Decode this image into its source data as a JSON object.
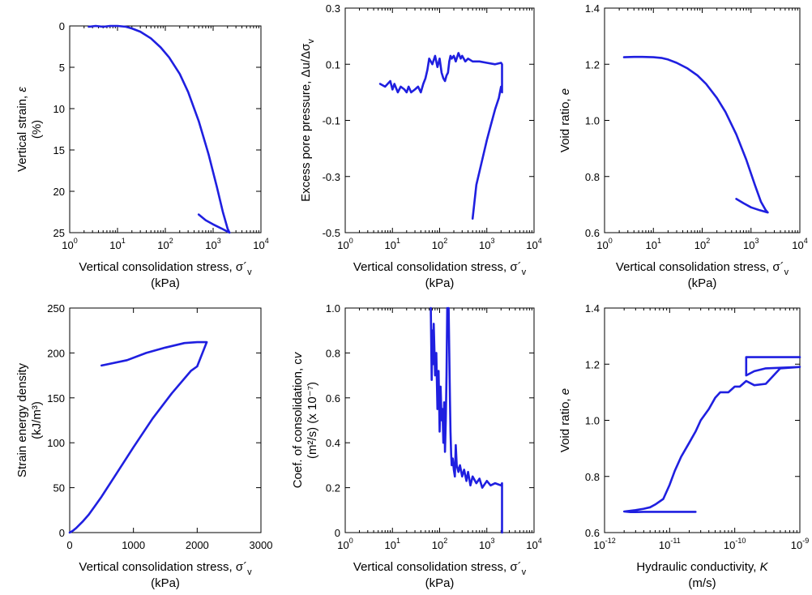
{
  "series_color": "#1f1fe0",
  "chart_data": [
    {
      "type": "line",
      "xscale": "log",
      "xlim": [
        1,
        10000
      ],
      "yscale": "linear",
      "ylim": [
        0,
        25
      ],
      "y_inverted": true,
      "x_ticks": [
        1,
        10,
        100,
        1000,
        10000
      ],
      "x_tick_labels": [
        {
          "base": "10",
          "exp": "0"
        },
        {
          "base": "10",
          "exp": "1"
        },
        {
          "base": "10",
          "exp": "2"
        },
        {
          "base": "10",
          "exp": "3"
        },
        {
          "base": "10",
          "exp": "4"
        }
      ],
      "y_ticks": [
        0,
        5,
        10,
        15,
        20,
        25
      ],
      "y_tick_labels": [
        "0",
        "5",
        "10",
        "15",
        "20",
        "25"
      ],
      "xlabel": [
        "Vertical consolidation stress, σ´",
        "v",
        "(kPa)"
      ],
      "ylabel": [
        "Vertical strain, ",
        "ε",
        "(%)"
      ],
      "grid": false,
      "x": [
        2.5,
        3.5,
        5,
        7,
        10,
        15,
        20,
        30,
        50,
        80,
        120,
        200,
        300,
        500,
        800,
        1200,
        1600,
        2000,
        2200,
        2200,
        1500,
        1000,
        700,
        500
      ],
      "y": [
        0.1,
        0.0,
        0.1,
        0.0,
        0.0,
        0.1,
        0.3,
        0.7,
        1.5,
        2.6,
        3.8,
        5.8,
        8.0,
        11.5,
        15.5,
        19.5,
        22.5,
        24.5,
        25.0,
        25.0,
        24.5,
        24.0,
        23.5,
        22.8
      ]
    },
    {
      "type": "line",
      "xscale": "log",
      "xlim": [
        1,
        10000
      ],
      "yscale": "linear",
      "ylim": [
        -0.5,
        0.3
      ],
      "x_ticks": [
        1,
        10,
        100,
        1000,
        10000
      ],
      "x_tick_labels": [
        {
          "base": "10",
          "exp": "0"
        },
        {
          "base": "10",
          "exp": "1"
        },
        {
          "base": "10",
          "exp": "2"
        },
        {
          "base": "10",
          "exp": "3"
        },
        {
          "base": "10",
          "exp": "4"
        }
      ],
      "y_ticks": [
        0.3,
        0.1,
        -0.1,
        -0.3,
        -0.5
      ],
      "y_tick_labels": [
        "0.3",
        "0.1",
        "-0.1",
        "-0.3",
        "-0.5"
      ],
      "xlabel": [
        "Vertical consolidation stress, σ´",
        "v",
        "(kPa)"
      ],
      "ylabel": [
        "Excess pore pressure, Δu/Δσ",
        "v",
        ""
      ],
      "grid": false,
      "x": [
        5.5,
        7,
        9,
        10,
        11,
        13,
        15,
        18,
        20,
        22,
        25,
        30,
        35,
        40,
        45,
        50,
        55,
        60,
        70,
        80,
        90,
        100,
        110,
        120,
        130,
        140,
        150,
        160,
        170,
        180,
        200,
        220,
        250,
        280,
        300,
        350,
        400,
        500,
        700,
        1000,
        1500,
        2000,
        2100,
        2100,
        2000,
        1800,
        1500,
        1200,
        1000,
        800,
        600,
        500
      ],
      "y": [
        0.03,
        0.02,
        0.04,
        0.01,
        0.03,
        0.0,
        0.02,
        0.01,
        0.0,
        0.02,
        0.0,
        0.01,
        0.02,
        0.0,
        0.03,
        0.05,
        0.08,
        0.12,
        0.1,
        0.13,
        0.09,
        0.12,
        0.07,
        0.05,
        0.04,
        0.06,
        0.07,
        0.11,
        0.13,
        0.12,
        0.13,
        0.11,
        0.14,
        0.12,
        0.13,
        0.11,
        0.12,
        0.11,
        0.11,
        0.105,
        0.1,
        0.105,
        0.1,
        0.0,
        0.02,
        -0.02,
        -0.06,
        -0.12,
        -0.17,
        -0.24,
        -0.33,
        -0.45
      ]
    },
    {
      "type": "line",
      "xscale": "log",
      "xlim": [
        1,
        10000
      ],
      "yscale": "linear",
      "ylim": [
        0.6,
        1.4
      ],
      "x_ticks": [
        1,
        10,
        100,
        1000,
        10000
      ],
      "x_tick_labels": [
        {
          "base": "10",
          "exp": "0"
        },
        {
          "base": "10",
          "exp": "1"
        },
        {
          "base": "10",
          "exp": "2"
        },
        {
          "base": "10",
          "exp": "3"
        },
        {
          "base": "10",
          "exp": "4"
        }
      ],
      "y_ticks": [
        0.6,
        0.8,
        1.0,
        1.2,
        1.4
      ],
      "y_tick_labels": [
        "0.6",
        "0.8",
        "1.0",
        "1.2",
        "1.4"
      ],
      "xlabel": [
        "Vertical consolidation stress, σ´",
        "v",
        "(kPa)"
      ],
      "ylabel": [
        "Void ratio, ",
        "e",
        ""
      ],
      "grid": false,
      "x": [
        2.5,
        4,
        6,
        10,
        15,
        20,
        30,
        50,
        80,
        120,
        200,
        300,
        500,
        800,
        1200,
        1600,
        2000,
        2200,
        2200,
        1500,
        1000,
        700,
        500
      ],
      "y": [
        1.225,
        1.226,
        1.226,
        1.225,
        1.222,
        1.217,
        1.205,
        1.185,
        1.16,
        1.13,
        1.08,
        1.03,
        0.95,
        0.86,
        0.77,
        0.71,
        0.68,
        0.672,
        0.672,
        0.68,
        0.69,
        0.705,
        0.72
      ]
    },
    {
      "type": "line",
      "xscale": "linear",
      "xlim": [
        0,
        3000
      ],
      "yscale": "linear",
      "ylim": [
        0,
        250
      ],
      "x_ticks": [
        0,
        1000,
        2000,
        3000
      ],
      "x_tick_labels": [
        "0",
        "1000",
        "2000",
        "3000"
      ],
      "y_ticks": [
        0,
        50,
        100,
        150,
        200,
        250
      ],
      "y_tick_labels": [
        "0",
        "50",
        "100",
        "150",
        "200",
        "250"
      ],
      "xlabel": [
        "Vertical consolidation stress, σ´",
        "v",
        "(kPa)"
      ],
      "ylabel": [
        "Strain energy density",
        "",
        "(kJ/m³)"
      ],
      "grid": false,
      "x": [
        0,
        50,
        100,
        200,
        300,
        400,
        500,
        700,
        1000,
        1300,
        1600,
        1900,
        2000,
        2150,
        2150,
        2000,
        1800,
        1500,
        1200,
        900,
        500
      ],
      "y": [
        0,
        2,
        5,
        12,
        20,
        30,
        40,
        62,
        95,
        127,
        155,
        180,
        185,
        212,
        212,
        212,
        211,
        206,
        200,
        192,
        186
      ]
    },
    {
      "type": "line",
      "xscale": "log",
      "xlim": [
        1,
        10000
      ],
      "yscale": "linear",
      "ylim": [
        0,
        1.0
      ],
      "x_ticks": [
        1,
        10,
        100,
        1000,
        10000
      ],
      "x_tick_labels": [
        {
          "base": "10",
          "exp": "0"
        },
        {
          "base": "10",
          "exp": "1"
        },
        {
          "base": "10",
          "exp": "2"
        },
        {
          "base": "10",
          "exp": "3"
        },
        {
          "base": "10",
          "exp": "4"
        }
      ],
      "y_ticks": [
        0,
        0.2,
        0.4,
        0.6,
        0.8,
        1.0
      ],
      "y_tick_labels": [
        "0",
        "0.2",
        "0.4",
        "0.6",
        "0.8",
        "1.0"
      ],
      "xlabel": [
        "Vertical consolidation stress, σ´",
        "v",
        "(kPa)"
      ],
      "ylabel": [
        "Coef. of consolidation, c",
        "v",
        "(m²/s) (x 10⁻⁷)"
      ],
      "grid": false,
      "x": [
        65,
        68,
        70,
        72,
        75,
        80,
        85,
        90,
        95,
        100,
        105,
        110,
        115,
        120,
        125,
        130,
        135,
        140,
        145,
        150,
        155,
        160,
        165,
        170,
        175,
        180,
        190,
        200,
        210,
        220,
        230,
        250,
        270,
        300,
        330,
        370,
        400,
        450,
        500,
        600,
        700,
        800,
        1000,
        1200,
        1500,
        2000,
        2100,
        2100
      ],
      "y": [
        1.0,
        0.68,
        0.9,
        0.75,
        0.93,
        0.7,
        0.8,
        0.55,
        0.72,
        0.45,
        0.65,
        0.5,
        0.55,
        0.4,
        0.58,
        0.36,
        0.5,
        0.7,
        1.0,
        0.95,
        1.0,
        0.8,
        0.6,
        0.45,
        0.35,
        0.3,
        0.33,
        0.28,
        0.25,
        0.39,
        0.3,
        0.27,
        0.3,
        0.25,
        0.28,
        0.23,
        0.27,
        0.21,
        0.25,
        0.22,
        0.24,
        0.2,
        0.23,
        0.21,
        0.22,
        0.21,
        0.22,
        0.0
      ]
    },
    {
      "type": "line",
      "xscale": "log",
      "xlim": [
        1e-12,
        1e-09
      ],
      "yscale": "linear",
      "ylim": [
        0.6,
        1.4
      ],
      "x_ticks": [
        1e-12,
        1e-11,
        1e-10,
        1e-09
      ],
      "x_tick_labels": [
        {
          "base": "10",
          "exp": "-12"
        },
        {
          "base": "10",
          "exp": "-11"
        },
        {
          "base": "10",
          "exp": "-10"
        },
        {
          "base": "10",
          "exp": "-9"
        }
      ],
      "y_ticks": [
        0.6,
        0.8,
        1.0,
        1.2,
        1.4
      ],
      "y_tick_labels": [
        "0.6",
        "0.8",
        "1.0",
        "1.2",
        "1.4"
      ],
      "xlabel": [
        "Hydraulic conductivity, ",
        "K",
        "(m/s)"
      ],
      "ylabel": [
        "Void ratio, ",
        "e",
        ""
      ],
      "grid": false,
      "x": [
        1e-09,
        1.5e-10,
        1.5e-10,
        2e-10,
        3e-10,
        1e-09,
        1e-09,
        5e-10,
        3e-10,
        2e-10,
        1.5e-10,
        1.2e-10,
        1e-10,
        8e-11,
        6e-11,
        5e-11,
        4e-11,
        3e-11,
        2.5e-11,
        2e-11,
        1.5e-11,
        1.2e-11,
        1e-11,
        8e-12,
        6e-12,
        5e-12,
        4e-12,
        3e-12,
        2e-12,
        2.5e-12,
        3e-12,
        4e-12,
        1e-11,
        2.5e-11
      ],
      "y": [
        1.225,
        1.225,
        1.16,
        1.175,
        1.185,
        1.19,
        1.19,
        1.185,
        1.13,
        1.125,
        1.14,
        1.12,
        1.12,
        1.1,
        1.1,
        1.08,
        1.04,
        1.0,
        0.96,
        0.92,
        0.87,
        0.82,
        0.77,
        0.72,
        0.7,
        0.69,
        0.685,
        0.68,
        0.675,
        0.673,
        0.673,
        0.674,
        0.674,
        0.674
      ]
    }
  ]
}
